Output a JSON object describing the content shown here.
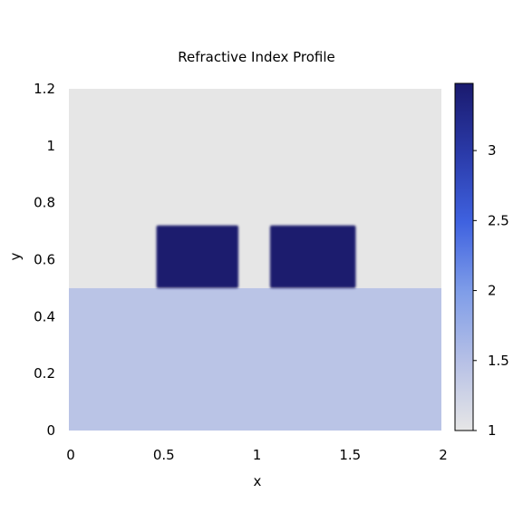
{
  "chart_data": {
    "type": "heatmap",
    "title": "Refractive Index Profile",
    "xlabel": "x",
    "ylabel": "y",
    "xlim": [
      0,
      2
    ],
    "ylim": [
      0,
      1.2
    ],
    "x_ticks": [
      0,
      0.5,
      1,
      1.5,
      2
    ],
    "x_tick_labels": [
      "0",
      "0.5",
      "1",
      "1.5",
      "2"
    ],
    "y_ticks": [
      0,
      0.2,
      0.4,
      0.6,
      0.8,
      1,
      1.2
    ],
    "y_tick_labels": [
      "0",
      "0.2",
      "0.4",
      "0.6",
      "0.8",
      "1",
      "1.2"
    ],
    "regions": [
      {
        "kind": "background",
        "x": [
          0,
          2
        ],
        "y": [
          0.5,
          1.2
        ],
        "value": 1.0
      },
      {
        "kind": "substrate",
        "x": [
          0,
          2
        ],
        "y": [
          0,
          0.5
        ],
        "value": 1.45
      },
      {
        "kind": "block",
        "x": [
          0.47,
          0.91
        ],
        "y": [
          0.5,
          0.72
        ],
        "value": 3.48
      },
      {
        "kind": "block",
        "x": [
          1.08,
          1.54
        ],
        "y": [
          0.5,
          0.72
        ],
        "value": 3.48
      }
    ],
    "colorbar": {
      "min": 1.0,
      "max": 3.48,
      "ticks": [
        1,
        1.5,
        2,
        2.5,
        3
      ],
      "tick_labels": [
        "1",
        "1.5",
        "2",
        "2.5",
        "3"
      ],
      "colors": [
        "#e6e6e6",
        "#b6c0e6",
        "#7f9de8",
        "#3f62e0",
        "#2a3aa8",
        "#1a1a6e"
      ]
    }
  }
}
